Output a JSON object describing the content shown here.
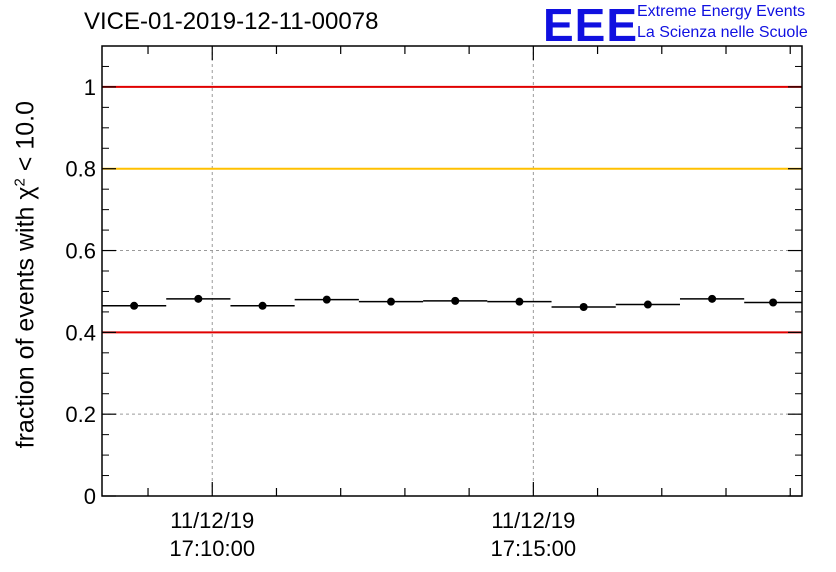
{
  "title": "VICE-01-2019-12-11-00078",
  "logo": {
    "mark": "EEE",
    "line1": "Extreme Energy Events",
    "line2": "La Scienza nelle Scuole",
    "color": "#1010e0"
  },
  "chart_data": {
    "type": "scatter",
    "title": "VICE-01-2019-12-11-00078",
    "ylabel_prefix": "fraction of events with χ",
    "ylabel_sup": "2",
    "ylabel_suffix": " < 10.0",
    "xlabel": "",
    "ylim": [
      0,
      1.1
    ],
    "yticks": [
      "0",
      "0.2",
      "0.4",
      "0.6",
      "0.8",
      "1"
    ],
    "xtick_labels": [
      {
        "date": "11/12/19",
        "time": "17:10:00"
      },
      {
        "date": "11/12/19",
        "time": "17:15:00"
      }
    ],
    "xlim": [
      "17:08:17",
      "17:19:11"
    ],
    "grid": true,
    "reference_lines": [
      {
        "y": 1.0,
        "color": "#e00000"
      },
      {
        "y": 0.8,
        "color": "#ffc000"
      },
      {
        "y": 0.4,
        "color": "#e00000"
      }
    ],
    "series": [
      {
        "marker": "circle",
        "color": "#000000",
        "points": [
          {
            "x_start": "17:08:17",
            "x_end": "17:09:17",
            "y": 0.465
          },
          {
            "x_start": "17:09:17",
            "x_end": "17:10:17",
            "y": 0.482
          },
          {
            "x_start": "17:10:17",
            "x_end": "17:11:17",
            "y": 0.465
          },
          {
            "x_start": "17:11:17",
            "x_end": "17:12:17",
            "y": 0.48
          },
          {
            "x_start": "17:12:17",
            "x_end": "17:13:17",
            "y": 0.475
          },
          {
            "x_start": "17:13:17",
            "x_end": "17:14:17",
            "y": 0.477
          },
          {
            "x_start": "17:14:17",
            "x_end": "17:15:17",
            "y": 0.475
          },
          {
            "x_start": "17:15:17",
            "x_end": "17:16:17",
            "y": 0.462
          },
          {
            "x_start": "17:16:17",
            "x_end": "17:17:17",
            "y": 0.468
          },
          {
            "x_start": "17:17:17",
            "x_end": "17:18:17",
            "y": 0.482
          },
          {
            "x_start": "17:18:17",
            "x_end": "17:19:11",
            "y": 0.473
          }
        ]
      }
    ]
  }
}
